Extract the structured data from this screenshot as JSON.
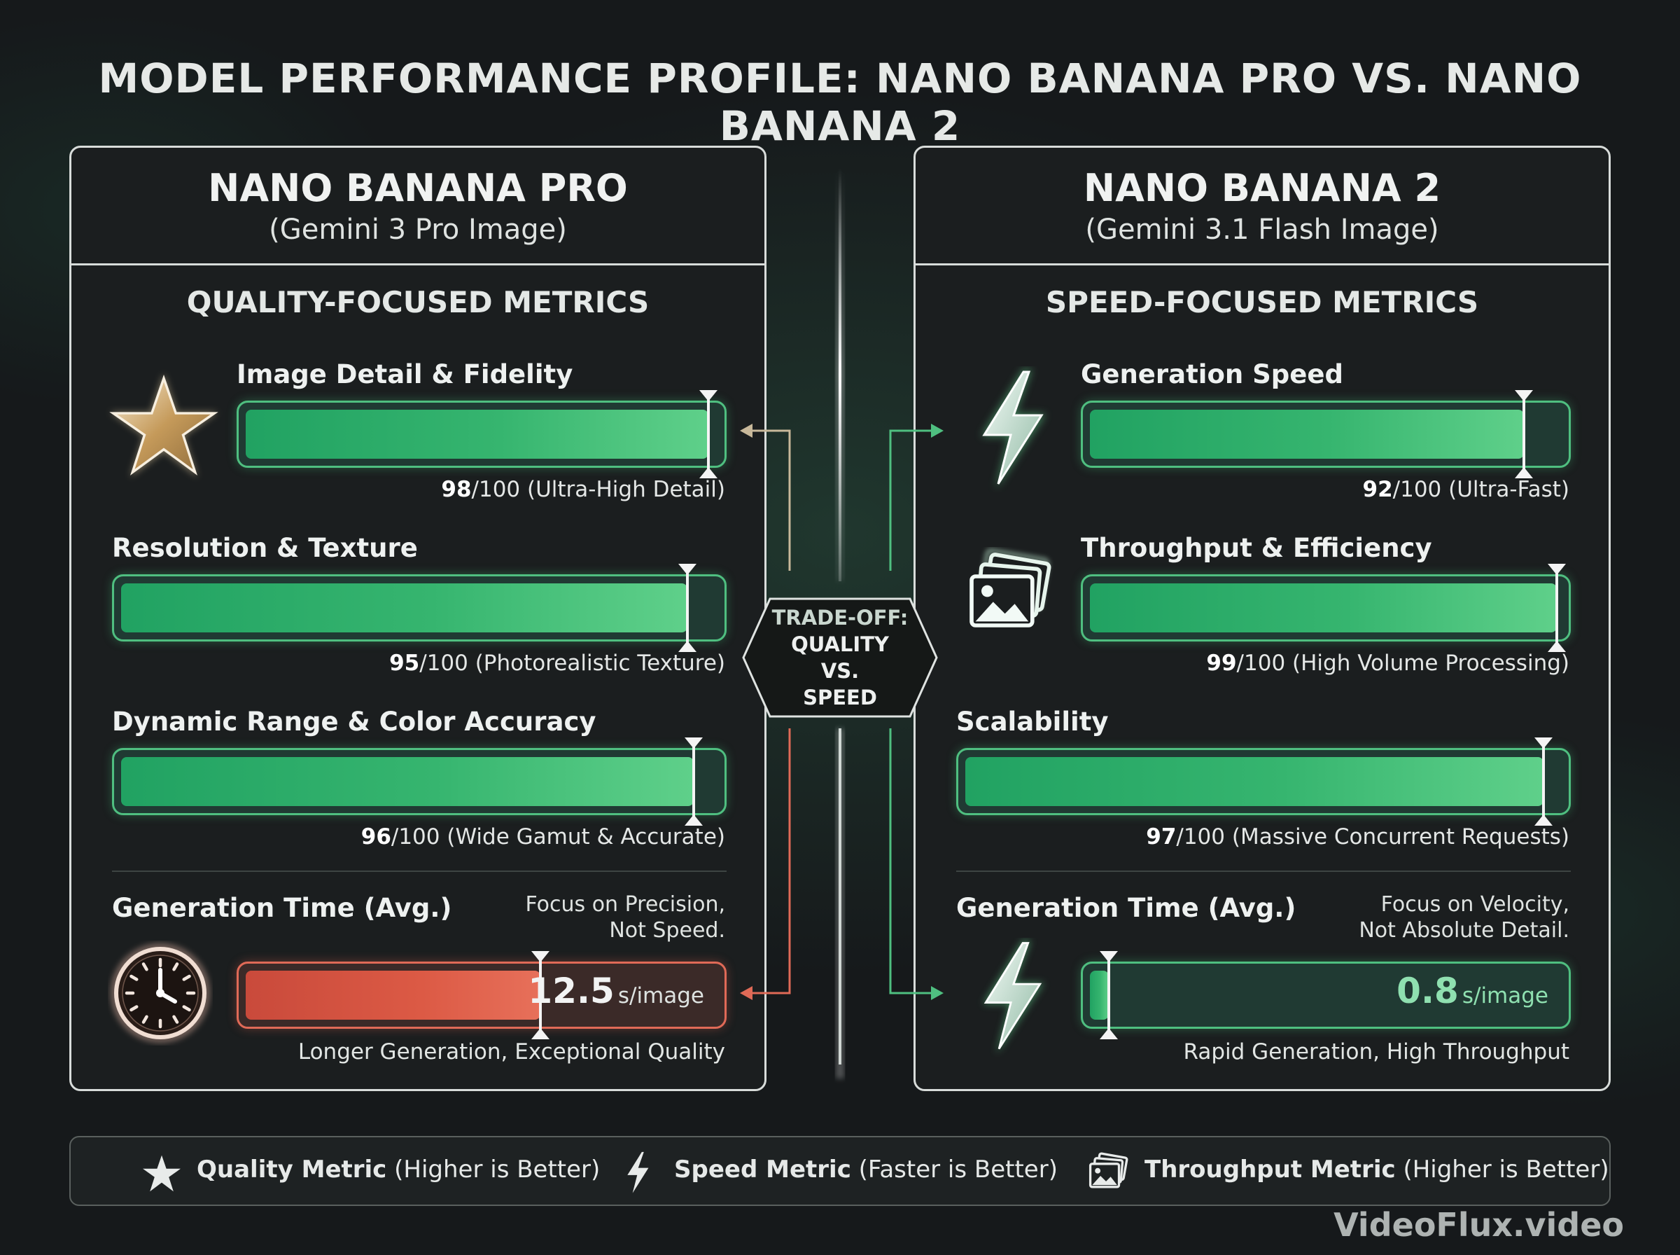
{
  "title": "MODEL PERFORMANCE PROFILE: NANO BANANA PRO VS. NANO BANANA 2",
  "left": {
    "name": "NANO BANANA PRO",
    "subtitle": "(Gemini 3 Pro Image)",
    "section": "QUALITY-FOCUSED METRICS",
    "metrics": [
      {
        "label": "Image Detail & Fidelity",
        "value": 98,
        "suffix": "/100 (Ultra-High Detail)",
        "icon": "star-icon"
      },
      {
        "label": "Resolution & Texture",
        "value": 95,
        "suffix": "/100 (Photorealistic Texture)"
      },
      {
        "label": "Dynamic Range & Color Accuracy",
        "value": 96,
        "suffix": "/100 (Wide Gamut & Accurate)"
      }
    ],
    "time": {
      "label": "Generation Time (Avg.)",
      "note_line1": "Focus on Precision,",
      "note_line2": "Not Speed.",
      "value": "12.5",
      "unit": "s/image",
      "caption": "Longer Generation, Exceptional Quality",
      "icon": "clock-icon",
      "color": "#dc5a45"
    }
  },
  "right": {
    "name": "NANO BANANA 2",
    "subtitle": "(Gemini 3.1 Flash Image)",
    "section": "SPEED-FOCUSED METRICS",
    "metrics": [
      {
        "label": "Generation Speed",
        "value": 92,
        "suffix": "/100 (Ultra-Fast)",
        "icon": "lightning-icon"
      },
      {
        "label": "Throughput & Efficiency",
        "value": 99,
        "suffix": "/100 (High Volume Processing)",
        "icon": "images-stack-icon"
      },
      {
        "label": "Scalability",
        "value": 97,
        "suffix": "/100 (Massive Concurrent Requests)"
      }
    ],
    "time": {
      "label": "Generation Time (Avg.)",
      "note_line1": "Focus on Velocity,",
      "note_line2": "Not Absolute Detail.",
      "value": "0.8",
      "unit": "s/image",
      "caption": "Rapid Generation, High Throughput",
      "icon": "lightning-icon",
      "color": "#36b56f"
    }
  },
  "tradeoff": {
    "line1": "TRADE-OFF:",
    "line2": "QUALITY",
    "line3": "VS.",
    "line4": "SPEED"
  },
  "legend": [
    {
      "bold": "Quality Metric",
      "rest": " (Higher is Better)",
      "icon": "star-icon"
    },
    {
      "bold": "Speed Metric",
      "rest": " (Faster is Better)",
      "icon": "lightning-icon"
    },
    {
      "bold": "Throughput Metric",
      "rest": " (Higher is Better)",
      "icon": "images-stack-icon"
    }
  ],
  "watermark": "VideoFlux.video",
  "colors": {
    "accent_green": "#4fbf80",
    "accent_red": "#e06a57",
    "background": "#16191b"
  },
  "chart_data": [
    {
      "type": "bar",
      "title": "NANO BANANA PRO",
      "categories": [
        "Image Detail & Fidelity",
        "Resolution & Texture",
        "Dynamic Range & Color Accuracy"
      ],
      "values": [
        98,
        95,
        96
      ],
      "ylim": [
        0,
        100
      ]
    },
    {
      "type": "bar",
      "title": "NANO BANANA 2",
      "categories": [
        "Generation Speed",
        "Throughput & Efficiency",
        "Scalability"
      ],
      "values": [
        92,
        99,
        97
      ],
      "ylim": [
        0,
        100
      ]
    },
    {
      "type": "bar",
      "title": "Generation Time (Avg.)",
      "categories": [
        "NANO BANANA PRO",
        "NANO BANANA 2"
      ],
      "values": [
        12.5,
        0.8
      ],
      "unit": "s/image"
    }
  ]
}
